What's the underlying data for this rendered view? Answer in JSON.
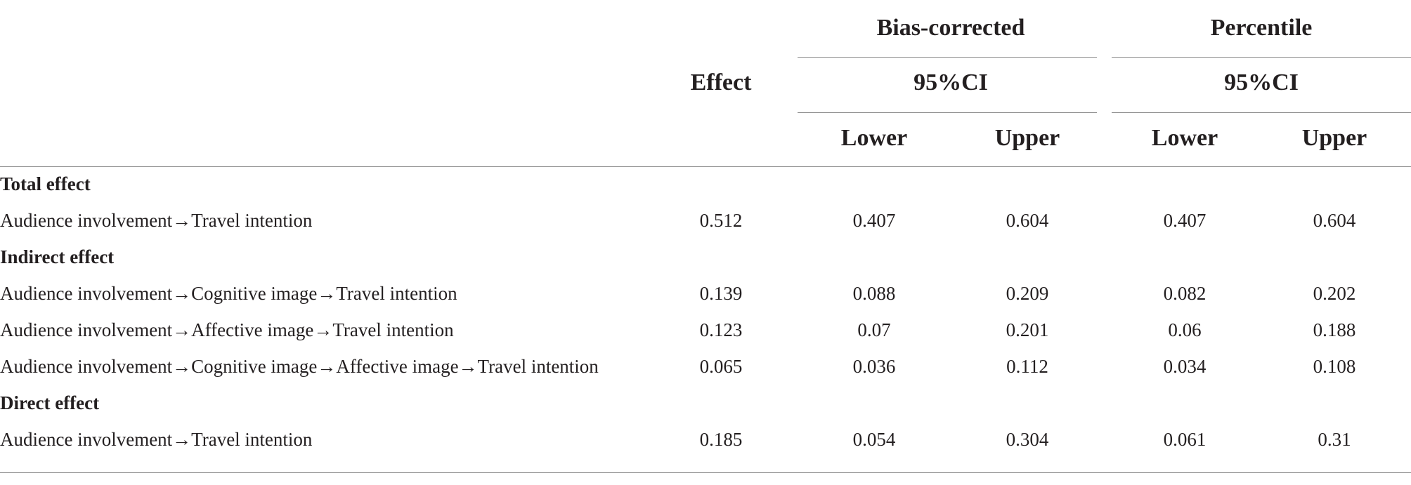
{
  "header": {
    "effect": "Effect",
    "bias_corrected": "Bias-corrected",
    "percentile": "Percentile",
    "ci_bias": "95%CI",
    "ci_pct": "95%CI",
    "lower_bias": "Lower",
    "upper_bias": "Upper",
    "lower_pct": "Lower",
    "upper_pct": "Upper"
  },
  "sections": {
    "total": "Total effect",
    "indirect": "Indirect effect",
    "direct": "Direct effect"
  },
  "rows": [
    {
      "label": "Audience involvement→Travel intention",
      "effect": "0.512",
      "bc_lower": "0.407",
      "bc_upper": "0.604",
      "p_lower": "0.407",
      "p_upper": "0.604"
    },
    {
      "label": "Audience involvement→Cognitive image→Travel intention",
      "effect": "0.139",
      "bc_lower": "0.088",
      "bc_upper": "0.209",
      "p_lower": "0.082",
      "p_upper": "0.202"
    },
    {
      "label": "Audience involvement→Affective image→Travel intention",
      "effect": "0.123",
      "bc_lower": "0.07",
      "bc_upper": "0.201",
      "p_lower": "0.06",
      "p_upper": "0.188"
    },
    {
      "label": "Audience involvement→Cognitive image→Affective image→Travel intention",
      "effect": "0.065",
      "bc_lower": "0.036",
      "bc_upper": "0.112",
      "p_lower": "0.034",
      "p_upper": "0.108"
    },
    {
      "label": "Audience involvement→Travel intention",
      "effect": "0.185",
      "bc_lower": "0.054",
      "bc_upper": "0.304",
      "p_lower": "0.061",
      "p_upper": "0.31"
    }
  ]
}
